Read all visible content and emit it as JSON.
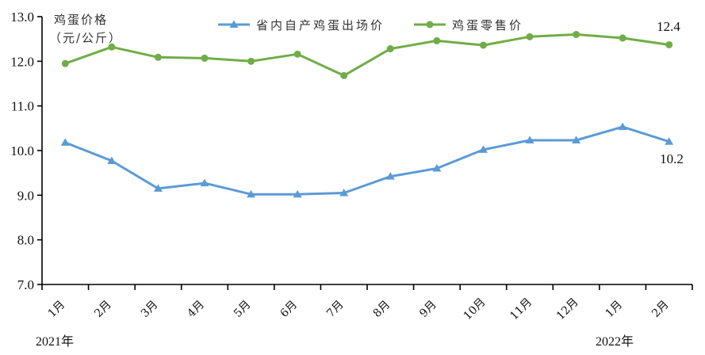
{
  "chart_data": {
    "type": "line",
    "title": "",
    "ylabel": "鸡蛋价格（元/公斤）",
    "ylabel_lines": [
      "鸡蛋价格",
      "（元/公斤）"
    ],
    "xlabel": "",
    "ylim": [
      7.0,
      13.0
    ],
    "yticks": [
      "7.0",
      "8.0",
      "9.0",
      "10.0",
      "11.0",
      "12.0",
      "13.0"
    ],
    "categories": [
      "1月",
      "2月",
      "3月",
      "4月",
      "5月",
      "6月",
      "7月",
      "8月",
      "9月",
      "10月",
      "11月",
      "12月",
      "1月",
      "2月"
    ],
    "year_labels": [
      {
        "text": "2021年",
        "category_index": 0
      },
      {
        "text": "2022年",
        "category_index": 12
      }
    ],
    "series": [
      {
        "name": "省内自产鸡蛋出场价",
        "color": "#5B9BD5",
        "marker": "triangle",
        "values": [
          10.18,
          9.77,
          9.15,
          9.27,
          9.02,
          9.02,
          9.05,
          9.42,
          9.6,
          10.02,
          10.23,
          10.23,
          10.53,
          10.2
        ],
        "end_label": "10.2"
      },
      {
        "name": "鸡蛋零售价",
        "color": "#70AD47",
        "marker": "circle",
        "values": [
          11.95,
          12.32,
          12.09,
          12.07,
          12.0,
          12.16,
          11.68,
          12.28,
          12.46,
          12.36,
          12.55,
          12.6,
          12.52,
          12.37
        ],
        "end_label": "12.4"
      }
    ],
    "legend_position": "top-center",
    "grid": false
  }
}
